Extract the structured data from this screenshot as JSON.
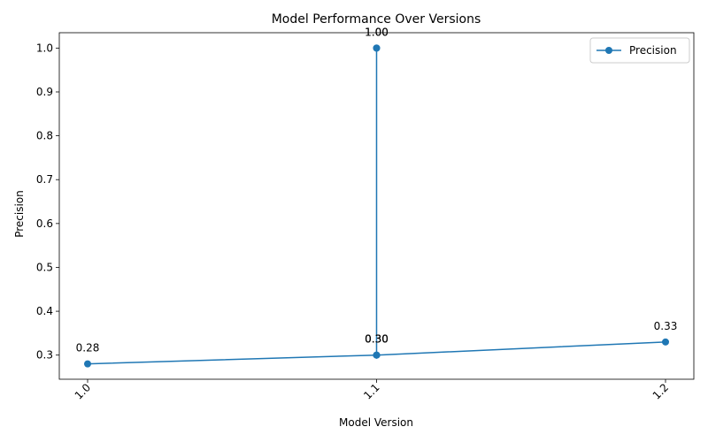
{
  "chart_data": {
    "type": "line",
    "title": "Model Performance Over Versions",
    "xlabel": "Model Version",
    "ylabel": "Precision",
    "x_ticks": [
      "1.0",
      "1.1",
      "1.2"
    ],
    "y_ticks": [
      "0.3",
      "0.4",
      "0.5",
      "0.6",
      "0.7",
      "0.8",
      "0.9",
      "1.0"
    ],
    "ylim": [
      0.245,
      1.035
    ],
    "grid": false,
    "legend_placement": "top-right",
    "series": [
      {
        "name": "Precision",
        "color": "#1f77b4",
        "points": [
          {
            "x": "1.0",
            "y": 0.28,
            "label": "0.28"
          },
          {
            "x": "1.1",
            "y": 0.3,
            "label": "0.30"
          },
          {
            "x": "1.1",
            "y": 1.0,
            "label": "1.00"
          },
          {
            "x": "1.1",
            "y": 1.0,
            "label": "1.00"
          },
          {
            "x": "1.1",
            "y": 0.3,
            "label": "0.30"
          },
          {
            "x": "1.2",
            "y": 0.33,
            "label": "0.33"
          },
          {
            "x": "1.1",
            "y": 0.3,
            "label": "0.30"
          }
        ]
      }
    ]
  }
}
